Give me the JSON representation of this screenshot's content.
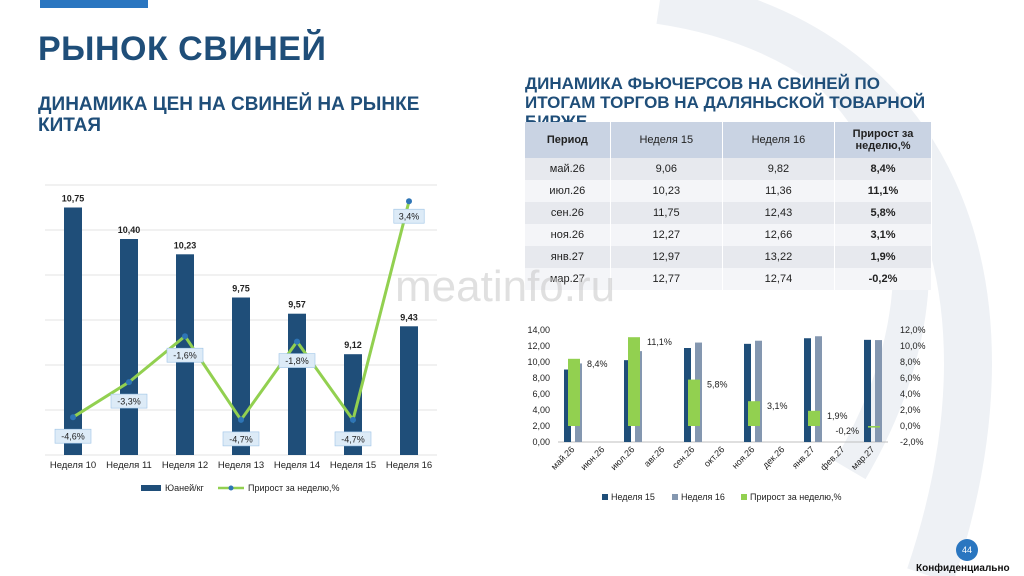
{
  "header": {
    "main_title": "РЫНОК СВИНЕЙ",
    "left_subtitle": "ДИНАМИКА ЦЕН НА СВИНЕЙ НА РЫНКЕ КИТАЯ",
    "right_subtitle": "ДИНАМИКА ФЬЮЧЕРСОВ НА СВИНЕЙ ПО ИТОГАМ ТОРГОВ НА ДАЛЯНЬСКОЙ ТОВАРНОЙ БИРЖЕ"
  },
  "watermark": "meatinfo.ru",
  "footer": {
    "page_number": "44",
    "confidential": "Конфиденциально"
  },
  "colors": {
    "title": "#1f4e79",
    "bar_dark": "#1f4e79",
    "bar_light": "#8497b0",
    "line_green": "#92d050",
    "marker": "#2e75b6",
    "label_bg": "#ddebf7"
  },
  "table": {
    "headers": [
      "Период",
      "Неделя 15",
      "Неделя 16",
      "Прирост за неделю,%"
    ],
    "rows": [
      [
        "май.26",
        "9,06",
        "9,82",
        "8,4%"
      ],
      [
        "июл.26",
        "10,23",
        "11,36",
        "11,1%"
      ],
      [
        "сен.26",
        "11,75",
        "12,43",
        "5,8%"
      ],
      [
        "ноя.26",
        "12,27",
        "12,66",
        "3,1%"
      ],
      [
        "янв.27",
        "12,97",
        "13,22",
        "1,9%"
      ],
      [
        "мар.27",
        "12,77",
        "12,74",
        "-0,2%"
      ]
    ]
  },
  "chart_data": [
    {
      "type": "bar",
      "title": "",
      "categories": [
        "Неделя 10",
        "Неделя 11",
        "Неделя 12",
        "Неделя 13",
        "Неделя 14",
        "Неделя 15",
        "Неделя 16"
      ],
      "series": [
        {
          "name": "Юаней/кг",
          "type": "bar",
          "values": [
            10.75,
            10.4,
            10.23,
            9.75,
            9.57,
            9.12,
            9.43
          ],
          "labels": [
            "10,75",
            "10,40",
            "10,23",
            "9,75",
            "9,57",
            "9,12",
            "9,43"
          ]
        },
        {
          "name": "Прирост за неделю,%",
          "type": "line",
          "values": [
            -4.6,
            -3.3,
            -1.6,
            -4.7,
            -1.8,
            -4.7,
            3.4
          ],
          "labels": [
            "-4,6%",
            "-3,3%",
            "-1,6%",
            "-4,7%",
            "-1,8%",
            "-4,7%",
            "3,4%"
          ]
        }
      ],
      "bar_axis_range": [
        8.0,
        11.0
      ],
      "line_axis_range": [
        -6.0,
        4.0
      ],
      "grid": true,
      "legend_position": "bottom"
    },
    {
      "type": "bar",
      "title": "",
      "categories": [
        "май.26",
        "июн.26",
        "июл.26",
        "авг.26",
        "сен.26",
        "окт.26",
        "ноя.26",
        "дек.26",
        "янв.27",
        "фев.27",
        "мар.27"
      ],
      "y_ticks": [
        "14,00",
        "12,00",
        "10,00",
        "8,00",
        "6,00",
        "4,00",
        "2,00",
        "0,00"
      ],
      "y2_ticks": [
        "12,0%",
        "10,0%",
        "8,0%",
        "6,0%",
        "4,0%",
        "2,0%",
        "0,0%",
        "-2,0%"
      ],
      "ylim": [
        0,
        14
      ],
      "y2lim": [
        -2,
        12
      ],
      "series": [
        {
          "name": "Неделя 15",
          "axis": "left",
          "values": [
            9.06,
            null,
            10.23,
            null,
            11.75,
            null,
            12.27,
            null,
            12.97,
            null,
            12.77
          ]
        },
        {
          "name": "Неделя 16",
          "axis": "left",
          "values": [
            9.82,
            null,
            11.36,
            null,
            12.43,
            null,
            12.66,
            null,
            13.22,
            null,
            12.74
          ]
        },
        {
          "name": "Прирост за неделю,%",
          "axis": "right",
          "values": [
            8.4,
            null,
            11.1,
            null,
            5.8,
            null,
            3.1,
            null,
            1.9,
            null,
            -0.2
          ],
          "labels": [
            "8,4%",
            "",
            "11,1%",
            "",
            "5,8%",
            "",
            "3,1%",
            "",
            "1,9%",
            "",
            "-0,2%"
          ]
        }
      ],
      "grid": false,
      "legend_position": "bottom"
    }
  ]
}
